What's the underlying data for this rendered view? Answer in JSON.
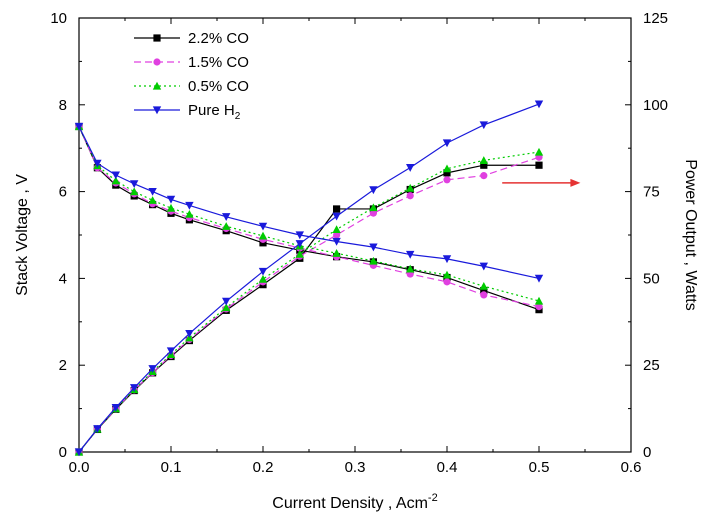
{
  "chart_data": {
    "type": "line",
    "xlabel": "Current Density , Acm",
    "xlabel_sup": "-2",
    "ylabel_left": "Stack Voltage , V",
    "ylabel_right": "Power Output , Watts",
    "xlim": [
      0,
      0.6
    ],
    "ylim_left": [
      0,
      10
    ],
    "ylim_right": [
      0,
      125
    ],
    "xticks": [
      0.0,
      0.1,
      0.2,
      0.3,
      0.4,
      0.5,
      0.6
    ],
    "xtick_labels": [
      "0.0",
      "0.1",
      "0.2",
      "0.3",
      "0.4",
      "0.5",
      "0.6"
    ],
    "yticks_left": [
      0,
      2,
      4,
      6,
      8,
      10
    ],
    "ytick_labels_left": [
      "0",
      "2",
      "4",
      "6",
      "8",
      "10"
    ],
    "yticks_right": [
      0,
      25,
      50,
      75,
      100,
      125
    ],
    "ytick_labels_right": [
      "0",
      "25",
      "50",
      "75",
      "100",
      "125"
    ],
    "grid": false,
    "legend_position": "top-left",
    "annotation_arrow": {
      "from": [
        0.46,
        6.2
      ],
      "to": [
        0.545,
        6.2
      ],
      "color": "#e53333",
      "direction": "right"
    },
    "x": [
      0.0,
      0.02,
      0.04,
      0.06,
      0.08,
      0.1,
      0.12,
      0.16,
      0.2,
      0.24,
      0.28,
      0.32,
      0.36,
      0.4,
      0.44,
      0.5
    ],
    "series": [
      {
        "name": "2.2% CO",
        "color": "#000000",
        "dash": "",
        "marker": "square",
        "voltage": [
          7.5,
          6.55,
          6.15,
          5.9,
          5.7,
          5.5,
          5.35,
          5.1,
          4.82,
          4.65,
          4.5,
          4.38,
          4.2,
          4.02,
          3.72,
          3.28
        ],
        "power": [
          0,
          6.5,
          12.3,
          17.7,
          22.8,
          27.5,
          32.1,
          40.8,
          48.2,
          55.8,
          70.0,
          70.0,
          75.6,
          80.4,
          82.6,
          82.6
        ]
      },
      {
        "name": "1.5% CO",
        "color": "#e040e0",
        "dash": "7,4",
        "marker": "circle",
        "voltage": [
          7.5,
          6.55,
          6.2,
          5.95,
          5.72,
          5.55,
          5.4,
          5.15,
          4.9,
          4.7,
          4.5,
          4.3,
          4.1,
          3.92,
          3.62,
          3.35
        ],
        "power": [
          0,
          6.6,
          12.4,
          17.9,
          22.9,
          27.8,
          32.4,
          41.2,
          49.0,
          56.4,
          62.5,
          68.8,
          73.8,
          78.4,
          79.6,
          84.9
        ]
      },
      {
        "name": "0.5% CO",
        "color": "#00cc00",
        "dash": "2,3",
        "marker": "triangle-up",
        "voltage": [
          7.5,
          6.6,
          6.25,
          6.0,
          5.8,
          5.62,
          5.48,
          5.2,
          4.98,
          4.75,
          4.58,
          4.4,
          4.22,
          4.08,
          3.82,
          3.48
        ],
        "power": [
          0,
          6.6,
          12.5,
          18.0,
          23.2,
          28.1,
          32.9,
          41.6,
          49.8,
          57.0,
          64.1,
          70.4,
          76.0,
          81.6,
          84.0,
          86.4
        ]
      },
      {
        "name": "Pure H",
        "name_sub": "2",
        "color": "#1a1adb",
        "dash": "",
        "marker": "triangle-down",
        "voltage": [
          7.5,
          6.65,
          6.38,
          6.18,
          6.0,
          5.82,
          5.68,
          5.42,
          5.2,
          5.0,
          4.85,
          4.72,
          4.55,
          4.45,
          4.28,
          4.0
        ],
        "power": [
          0,
          6.7,
          12.8,
          18.5,
          24.0,
          29.1,
          34.1,
          43.4,
          52.0,
          60.0,
          67.9,
          75.5,
          81.9,
          89.0,
          94.2,
          100.2
        ]
      }
    ]
  }
}
